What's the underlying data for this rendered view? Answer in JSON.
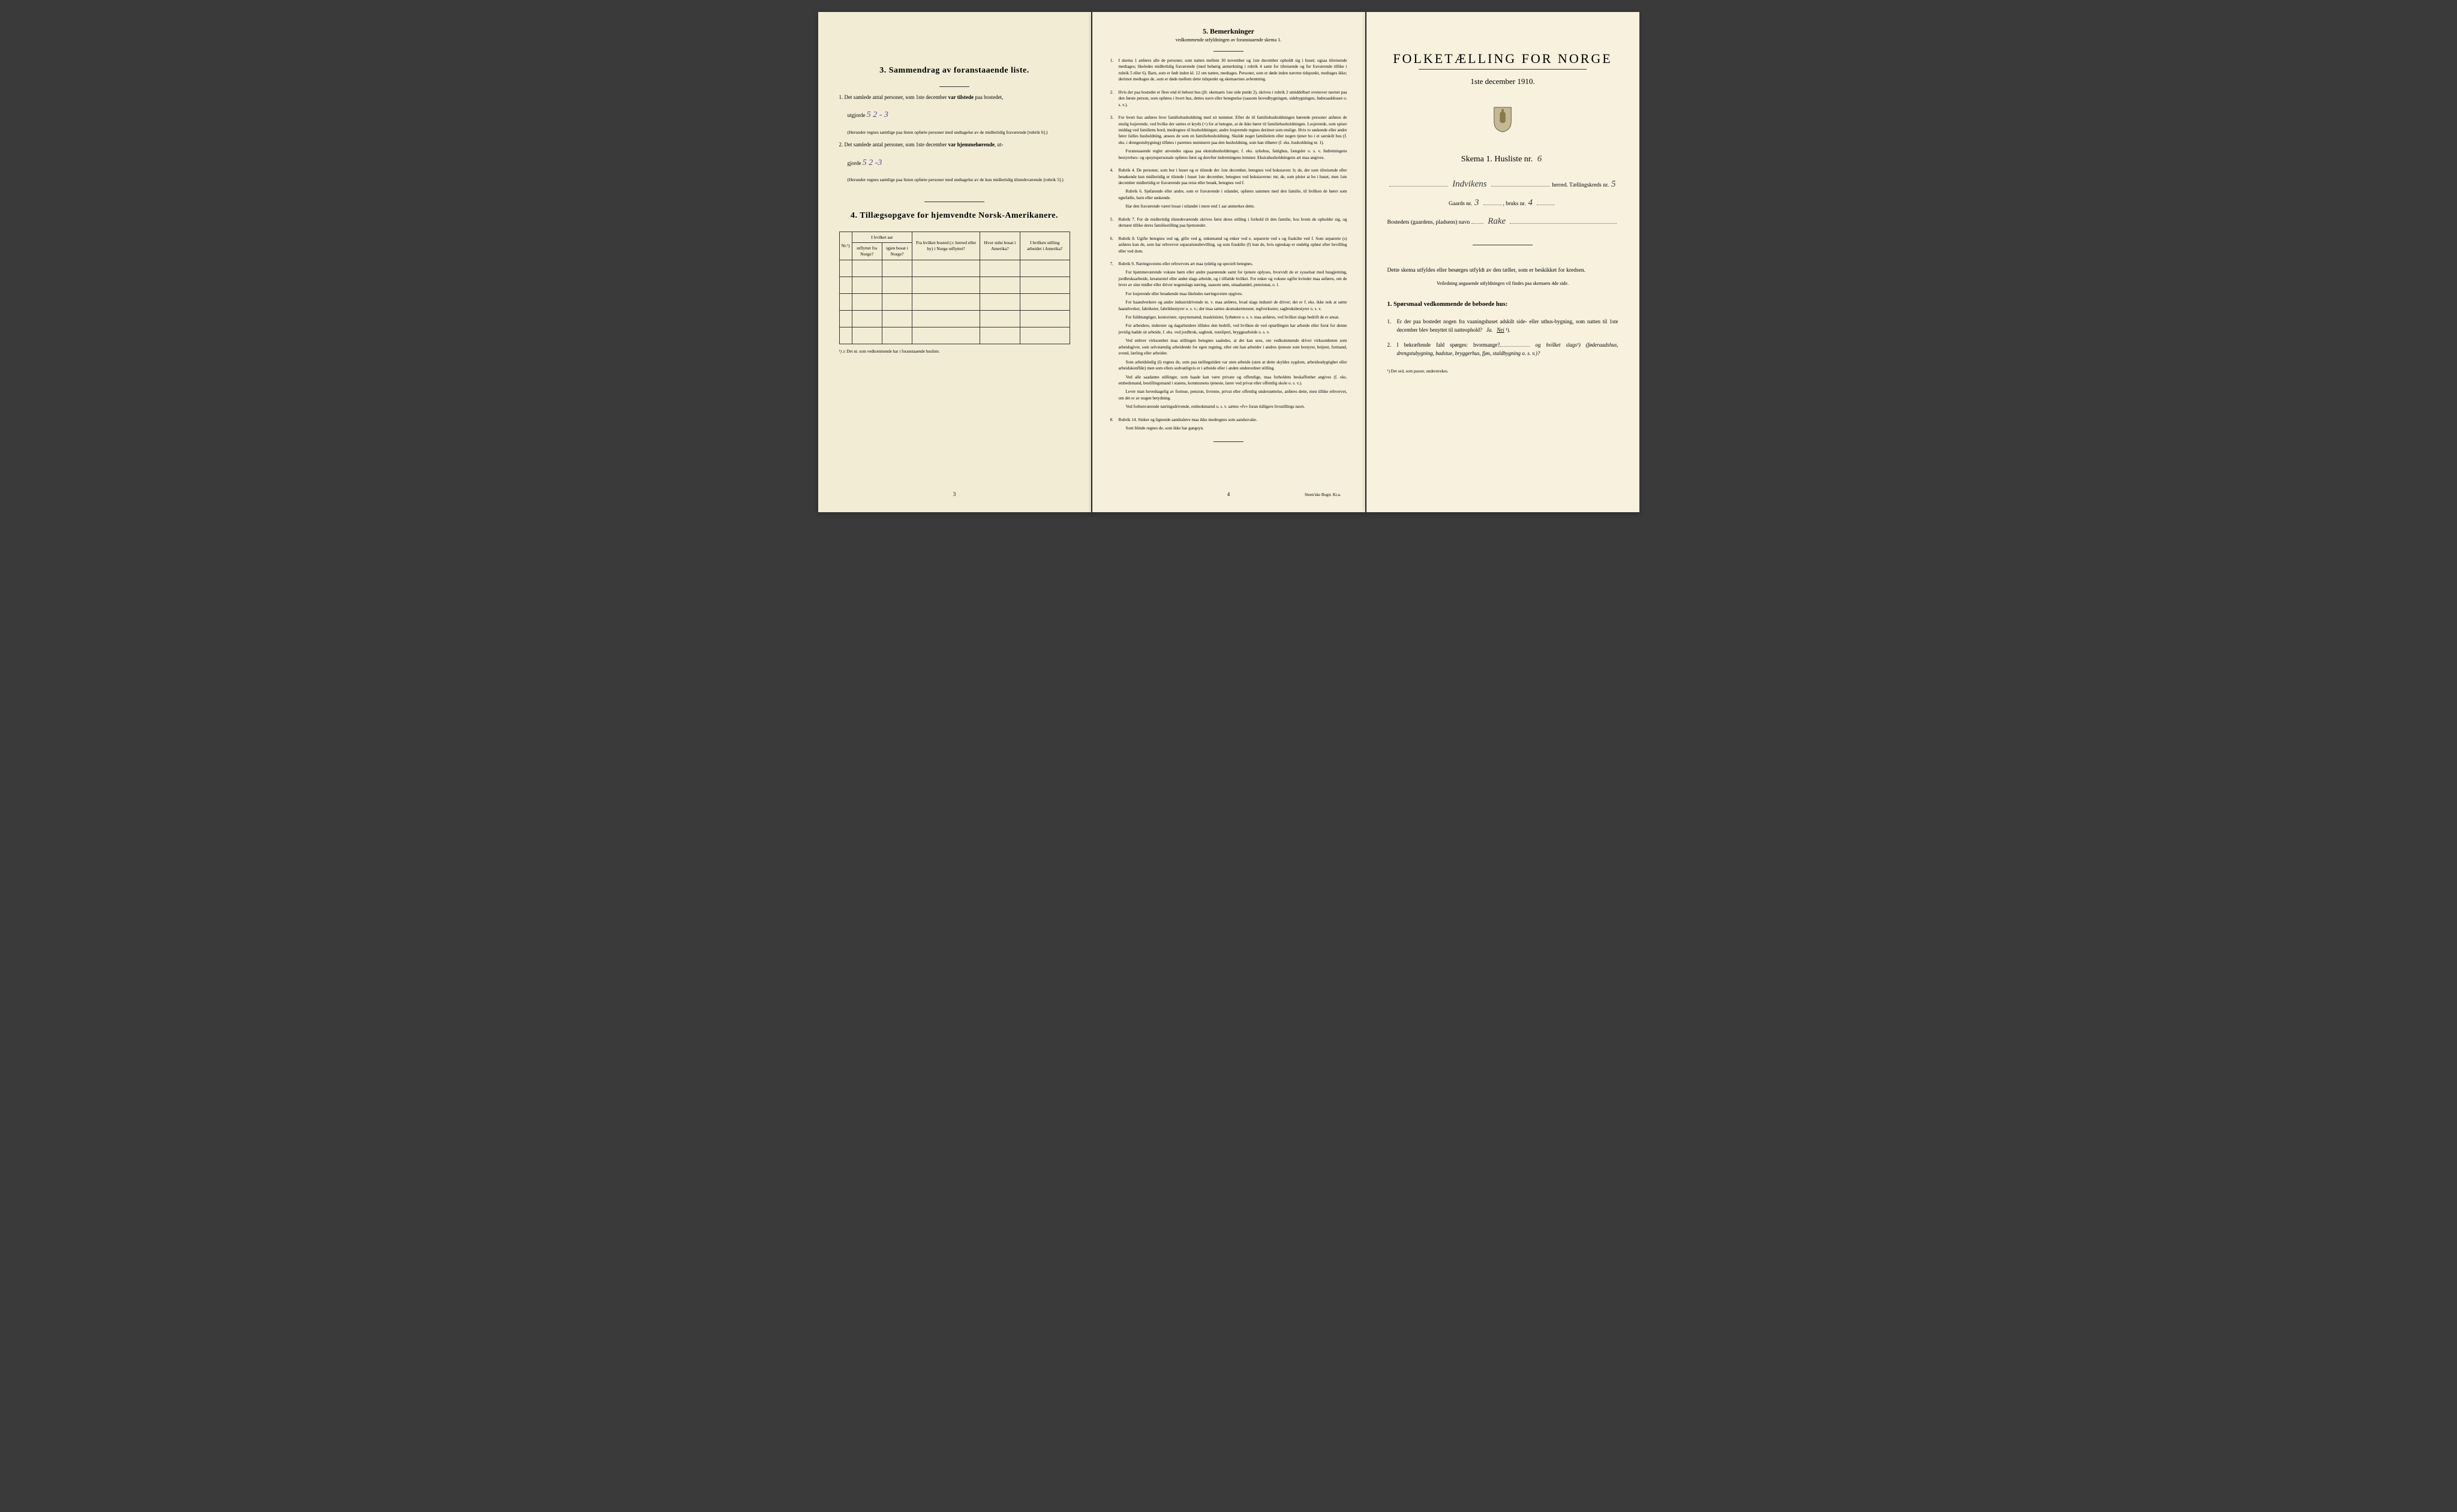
{
  "left": {
    "section3_title": "3.   Sammendrag av foranstaaende liste.",
    "item1_prefix": "1.  Det samlede antal personer, som 1ste december ",
    "item1_bold": "var tilstede",
    "item1_suffix": " paa bostedet,",
    "item1_line2": "utgjorde",
    "item1_hw": "5   2 - 3",
    "item1_note": "(Herunder regnes samtlige paa listen opførte personer med undtagelse av de midlertidig fraværende [rubrik 6].)",
    "item2_prefix": "2.  Det samlede antal personer, som 1ste december ",
    "item2_bold": "var hjemmehørende",
    "item2_suffix": ", ut-",
    "item2_line2": "gjorde",
    "item2_hw": "5   2 -3",
    "item2_note": "(Herunder regnes samtlige paa listen opførte personer med undtagelse av de kun midlertidig tilstedeværende [rubrik 5].)",
    "section4_title": "4.   Tillægsopgave for hjemvendte Norsk-Amerikanere.",
    "th_nr": "Nr.¹)",
    "th_aar": "I hvilket aar",
    "th_utflyttet": "utflyttet fra Norge?",
    "th_igjen": "igjen bosat i Norge?",
    "th_bosted": "Fra hvilket bosted (ɔ: herred eller by) i Norge utflyttet?",
    "th_amerika": "Hvor sidst bosat i Amerika?",
    "th_stilling": "I hvilken stilling arbeidet i Amerika?",
    "footnote": "¹) ɔ: Det nr. som vedkommende har i foranstaaende husliste.",
    "page_num": "3"
  },
  "middle": {
    "title": "5.   Bemerkninger",
    "subtitle": "vedkommende utfyldningen av foranstaaende skema 1.",
    "items": [
      {
        "n": "1.",
        "t": [
          "I skema 1 anføres alle de personer, som natten mellem 30 november og 1ste december opholdt sig i huset; ogsaa tilreisende medtages; likeledes midlertidig fraværende (med behørig anmerkning i rubrik 4 samt for tilreisende og for fraværende tillike i rubrik 5 eller 6). Barn, som er født inden kl. 12 om natten, medtages. Personer, som er døde inden nævnte tidspunkt, medtages ikke; derimot medtages de, som er døde mellem dette tidspunkt og skemaernes avhentning."
        ]
      },
      {
        "n": "2.",
        "t": [
          "Hvis der paa bostedet er flere end ét beboet hus (jfr. skemaets 1ste side punkt 2), skrives i rubrik 2 umiddelbart ovenover navnet paa den første person, som opføres i hvert hus, dettes navn eller betegnelse (saasom hovedbygningen, sidebygningen, føderaadshuset o. s. v.)."
        ]
      },
      {
        "n": "3.",
        "t": [
          "For hvert hus anføres hver familiehusholdning med sit nummer. Efter de til familiehusholdningen hørende personer anføres de enslig losjerende, ved hvilke der sættes et kryds (×) for at betegne, at de ikke hører til familiehusholdningen. Losjerende, som spiser middag ved familiens bord, medregnes til husholdningen; andre losjerende regnes derimot som enslige. Hvis to søskende eller andre fører fælles husholdning, ansees de som en familiehusholdning. Skulde noget familielem eller nogen tjener bo i et særskilt hus (f. eks. i drengestubygning) tilføies i parentes nummeret paa den husholdning, som han tilhører (f. eks. husholdning nr. 1).",
          "Foranstaaende regler anvendes ogsaa paa ekstrahusholdninger, f. eks. sykehus, fattighus, fængsler o. s. v. Indretningens bestyrelses- og opsynspersonale opføres først og derefter indretningens lemmer. Ekstrahusholdningens art maa angives."
        ]
      },
      {
        "n": "4.",
        "t": [
          "Rubrik 4. De personer, som bor i huset og er tilstede der 1ste december, betegnes ved bokstaven: b; de, der som tilreisende eller besøkende kun midlertidig er tilstede i huset 1ste december, betegnes ved bokstaverne: mt; de, som pleier at bo i huset, men 1ste december midlertidig er fraværende paa reise eller besøk, betegnes ved f.",
          "Rubrik 6. Sjøfarende eller andre, som er fraværende i utlandet, opføres sammen med den familie, til hvilken de hører som egtefælle, barn eller søskende.",
          "Har den fraværende været bosat i utlandet i mere end 1 aar anmerkes dette."
        ]
      },
      {
        "n": "5.",
        "t": [
          "Rubrik 7. For de midlertidig tilstedeværende skrives først deres stilling i forhold til den familie, hos hvem de opholder sig, og dernæst tillike deres familiestilling paa hjemstedet."
        ]
      },
      {
        "n": "6.",
        "t": [
          "Rubrik 8. Ugifte betegnes ved ug, gifte ved g, enkemænd og enker ved e, separerte ved s og fraskilte ved f. Som separerte (s) anføres kun de, som har erhvervet separationsbevilling, og som fraskilte (f) kun de, hvis egteskap er endelig opløst efter bevilling eller ved dom."
        ]
      },
      {
        "n": "7.",
        "t": [
          "Rubrik 9. Næringsveiens eller erhvervets art maa tydelig og specielt betegnes.",
          "For hjemmeværende voksne børn eller andre paarørende samt for tjenere oplyses, hvorvidt de er sysselsat med husgjerning, jordbruksarbeide, kreaturstel eller andet slags arbeide, og i tilfælde hvilket. For enker og voksne ugifte kvinder maa anføres, om de lever av sine midler eller driver nogenslags næring, saasom søm, smaahandel, pensionat, o. l.",
          "For losjerende eller besøkende maa likeledes næringsveien opgives.",
          "For haandverkere og andre industridrivende m. v. maa anføres, hvad slags industri de driver; det er f. eks. ikke nok at sætte haandverker, fabrikeier, fabrikbestyrer o. s. v.; der maa sættes skomakermester, teglverkseier, sagbruksbestyrer o. s. v.",
          "For fuldmægtiger, kontorister, opsynsmænd, maskinister, fyrbøtere o. s. v. maa anføres, ved hvilket slags bedrift de er ansat.",
          "For arbeidere, inderster og dagarbeidere tilføies den bedrift, ved hvilken de ved optællingen har arbeide eller forut for denne jevnlig hadde sit arbeide, f. eks. ved jordbruk, sagbruk, træsliperi, bryggearbeide o. s. v.",
          "Ved enhver virksomhet maa stillingen betegnes saaledes, at det kan sees, om vedkommende driver virksomheten som arbeidsgiver, som selvstændig arbeidende for egen regning, eller om han arbeider i andres tjeneste som bestyrer, betjent, formand, svend, lærling eller arbeider.",
          "Som arbeidsledig (l) regnes de, som paa tællingstiden var uten arbeide (uten at dette skyldes sygdom, arbeidsudygtighet eller arbeidskonflikt) men som ellers sedvanligvis er i arbeide eller i anden underordnet stilling.",
          "Ved alle saadanne stillinger, som baade kan være private og offentlige, maa forholdets beskaffenhet angives (f. eks. embedsmand, bestillingsmand i statens, kommunens tjeneste, lærer ved privat eller offentlig skole o. s. v.).",
          "Lever man hovedsagelig av formue, pension, livrente, privat eller offentlig understøttelse, anføres dette, men tillike erhvervet, om det er av nogen betydning.",
          "Ved forhenværende næringsdrivende, embedsmænd o. s. v. sættes «fv» foran tidligere livsstillings navn."
        ]
      },
      {
        "n": "8.",
        "t": [
          "Rubrik 14. Sinker og lignende aandssløve maa ikke medregnes som aandssvake.",
          "Som blinde regnes de, som ikke har gangsyn."
        ]
      }
    ],
    "page_num": "4",
    "printer": "Steen'ske Bogtr.  Kr.a."
  },
  "right": {
    "main_title": "FOLKETÆLLING FOR NORGE",
    "date": "1ste december 1910.",
    "skema_prefix": "Skema 1.   Husliste nr.",
    "husliste_nr": "6",
    "herred_hw": "Indvikens",
    "herred_label": "herred.  Tællingskreds nr.",
    "kreds_nr": "5",
    "gaards_label": "Gaards nr.",
    "gaards_nr": "3",
    "bruks_label": ", bruks nr.",
    "bruks_nr": "4",
    "bosted_label": "Bostedets (gaardens, pladsens) navn",
    "bosted_hw": "Rake",
    "body1": "Dette skema utfyldes eller besørges utfyldt av den tæller, som er beskikket for kredsen.",
    "body_note": "Veiledning angaaende utfyldningen vil findes paa skemaets 4de side.",
    "q_title": "1. Spørsmaal vedkommende de beboede hus:",
    "q1": "Er der paa bostedet nogen fra vaaningshuset adskilt side- eller uthus-bygning, som natten til 1ste december blev benyttet til natteophold?",
    "q1_ja": "Ja.",
    "q1_nei": "Nei",
    "q1_sup": " ¹).",
    "q2": "I bekræftende fald spørges: hvormange?",
    "q2_suffix": "og hvilket slags¹) (føderaadshus, drengstubygning, badstue, bryggerhus, fjøs, staldbygning o. s. v.)?",
    "q_footnote": "¹) Det ord, som passer, understrekes.",
    "crest_bg": "#c4b896",
    "crest_lion": "#8a7a4a"
  }
}
